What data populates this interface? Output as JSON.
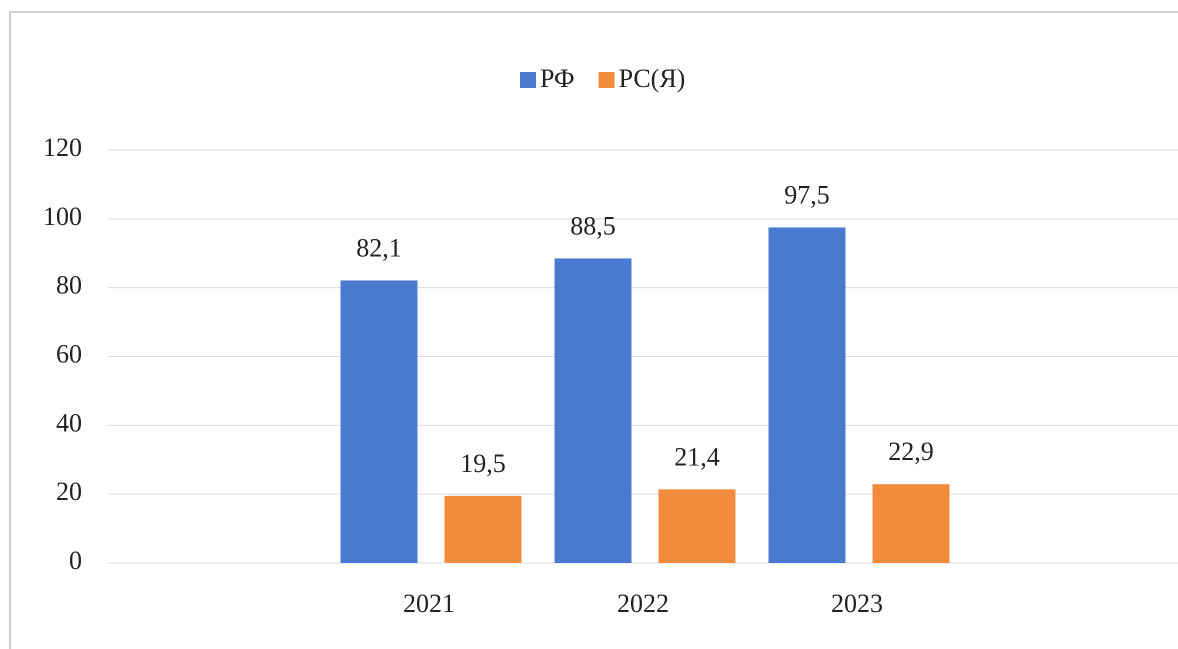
{
  "chart_data": {
    "type": "bar",
    "categories": [
      null,
      "2021",
      "2022",
      "2023",
      null
    ],
    "series": [
      {
        "name": "РФ",
        "color": "#4a7bd0",
        "values": [
          null,
          82.1,
          88.5,
          97.5,
          null
        ],
        "value_labels": [
          null,
          "82,1",
          "88,5",
          "97,5",
          null
        ]
      },
      {
        "name": "РС(Я)",
        "color": "#f38b3c",
        "values": [
          null,
          19.5,
          21.4,
          22.9,
          null
        ],
        "value_labels": [
          null,
          "19,5",
          "21,4",
          "22,9",
          null
        ]
      }
    ],
    "ylim": [
      0,
      120
    ],
    "yticks": [
      0,
      20,
      40,
      60,
      80,
      100,
      120
    ],
    "grid": true,
    "legend": "top"
  }
}
